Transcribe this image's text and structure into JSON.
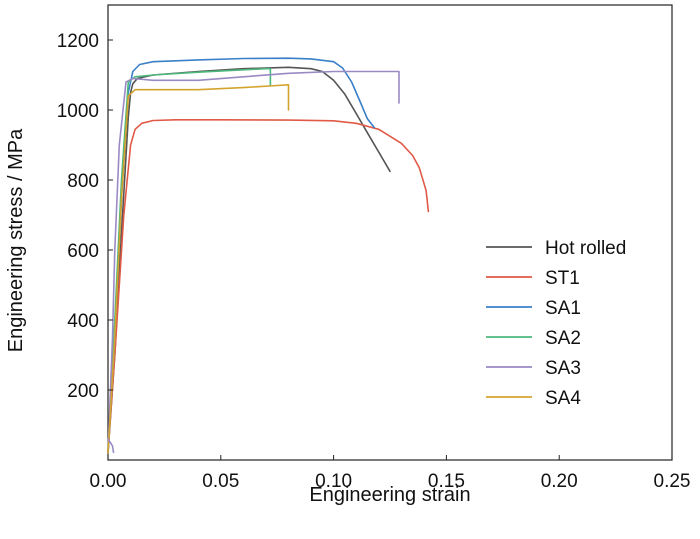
{
  "chart_data": {
    "type": "line",
    "title": "",
    "xlabel": "Engineering strain",
    "ylabel": "Engineering stress / MPa",
    "xlim": [
      0,
      0.25
    ],
    "ylim": [
      0,
      1300
    ],
    "xticks": [
      0,
      0.05,
      0.1,
      0.15,
      0.2,
      0.25
    ],
    "xtick_labels": [
      "0.00",
      "0.05",
      "0.10",
      "0.15",
      "0.20",
      "0.25"
    ],
    "yticks": [
      200,
      400,
      600,
      800,
      1000,
      1200
    ],
    "ytick_labels": [
      "200",
      "400",
      "600",
      "800",
      "1000",
      "1200"
    ],
    "grid": false,
    "legend_position": "center-right",
    "series": [
      {
        "name": "Hot rolled",
        "color": "#555555",
        "x": [
          0,
          0.003,
          0.006,
          0.009,
          0.01,
          0.011,
          0.013,
          0.02,
          0.04,
          0.06,
          0.08,
          0.09,
          0.095,
          0.1,
          0.105,
          0.11,
          0.115,
          0.12,
          0.125
        ],
        "y": [
          20,
          300,
          650,
          980,
          1050,
          1075,
          1090,
          1100,
          1110,
          1118,
          1122,
          1118,
          1110,
          1085,
          1045,
          990,
          935,
          880,
          825
        ]
      },
      {
        "name": "ST1",
        "color": "#e05a47",
        "x": [
          0,
          0.003,
          0.007,
          0.01,
          0.012,
          0.015,
          0.02,
          0.03,
          0.05,
          0.08,
          0.1,
          0.11,
          0.12,
          0.13,
          0.135,
          0.138,
          0.141,
          0.142
        ],
        "y": [
          20,
          300,
          700,
          900,
          945,
          962,
          970,
          972,
          972,
          971,
          969,
          962,
          945,
          905,
          870,
          835,
          770,
          710
        ]
      },
      {
        "name": "SA1",
        "color": "#3a80c8",
        "x": [
          0,
          0.003,
          0.006,
          0.009,
          0.011,
          0.014,
          0.02,
          0.04,
          0.06,
          0.08,
          0.09,
          0.1,
          0.104,
          0.108,
          0.112,
          0.115,
          0.118
        ],
        "y": [
          20,
          350,
          750,
          1050,
          1110,
          1130,
          1138,
          1143,
          1147,
          1148,
          1146,
          1138,
          1120,
          1080,
          1020,
          975,
          950
        ]
      },
      {
        "name": "SA2",
        "color": "#4cb87c",
        "x": [
          0,
          0.003,
          0.006,
          0.009,
          0.012,
          0.02,
          0.04,
          0.06,
          0.07,
          0.072,
          0.072
        ],
        "y": [
          20,
          400,
          800,
          1080,
          1095,
          1100,
          1108,
          1115,
          1118,
          1118,
          1070
        ]
      },
      {
        "name": "SA3",
        "color": "#9a8ac4",
        "x": [
          0,
          0.002,
          0.003,
          0.005,
          0.008,
          0.011,
          0.02,
          0.04,
          0.06,
          0.08,
          0.1,
          0.12,
          0.129,
          0.129
        ],
        "y": [
          20,
          350,
          600,
          900,
          1080,
          1090,
          1085,
          1085,
          1095,
          1105,
          1110,
          1110,
          1110,
          1020
        ]
      },
      {
        "name": "SA4",
        "color": "#d4a32e",
        "x": [
          0,
          0.003,
          0.006,
          0.009,
          0.012,
          0.02,
          0.04,
          0.06,
          0.075,
          0.08,
          0.08
        ],
        "y": [
          20,
          350,
          750,
          1040,
          1058,
          1058,
          1058,
          1064,
          1070,
          1072,
          1000
        ]
      }
    ],
    "annotations": [
      {
        "series": "SA3",
        "x": [
          0,
          0.001,
          0.002,
          0.0025
        ],
        "y": [
          60,
          50,
          40,
          20
        ]
      }
    ]
  }
}
